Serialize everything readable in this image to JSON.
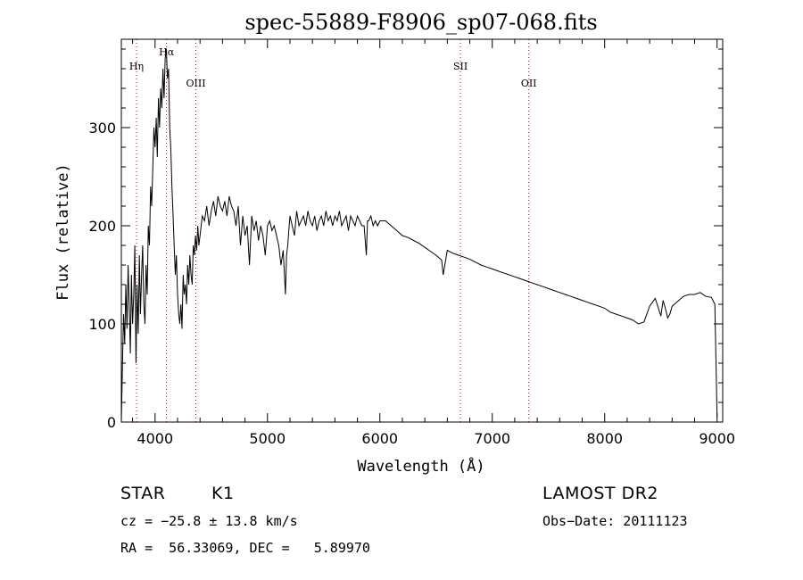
{
  "chart_data": {
    "type": "line",
    "title": "spec-55889-F8906_sp07-068.fits",
    "xlabel": "Wavelength (Å)",
    "ylabel": "Flux (relative)",
    "xlim": [
      3700,
      9050
    ],
    "ylim": [
      0,
      390
    ],
    "xticks": [
      4000,
      5000,
      6000,
      7000,
      8000,
      9000
    ],
    "yticks": [
      0,
      100,
      200,
      300
    ],
    "line_color": "#000000",
    "marker_color": "#cc0000",
    "lines": [
      {
        "name": "Hη",
        "wavelength": 3835
      },
      {
        "name": "Hα",
        "wavelength": 4102
      },
      {
        "name": "OIII",
        "wavelength": 4363
      },
      {
        "name": "SII",
        "wavelength": 6717
      },
      {
        "name": "OII",
        "wavelength": 7325
      }
    ],
    "spectrum": {
      "x": [
        3700,
        3710,
        3720,
        3730,
        3740,
        3750,
        3760,
        3770,
        3780,
        3790,
        3800,
        3810,
        3820,
        3830,
        3840,
        3850,
        3860,
        3870,
        3880,
        3890,
        3900,
        3910,
        3920,
        3930,
        3940,
        3950,
        3960,
        3970,
        3980,
        3990,
        4000,
        4010,
        4020,
        4030,
        4040,
        4050,
        4060,
        4070,
        4080,
        4090,
        4100,
        4110,
        4120,
        4130,
        4140,
        4150,
        4160,
        4170,
        4180,
        4190,
        4200,
        4210,
        4220,
        4230,
        4240,
        4250,
        4260,
        4270,
        4280,
        4290,
        4300,
        4310,
        4320,
        4330,
        4340,
        4350,
        4360,
        4370,
        4380,
        4390,
        4400,
        4420,
        4440,
        4460,
        4480,
        4500,
        4520,
        4540,
        4560,
        4580,
        4600,
        4620,
        4640,
        4660,
        4680,
        4700,
        4720,
        4740,
        4760,
        4780,
        4800,
        4820,
        4840,
        4860,
        4880,
        4900,
        4920,
        4940,
        4960,
        4980,
        5000,
        5020,
        5040,
        5060,
        5080,
        5100,
        5120,
        5140,
        5160,
        5170,
        5180,
        5190,
        5200,
        5220,
        5240,
        5260,
        5280,
        5300,
        5320,
        5340,
        5360,
        5380,
        5400,
        5420,
        5440,
        5460,
        5480,
        5500,
        5520,
        5540,
        5560,
        5580,
        5600,
        5620,
        5640,
        5660,
        5680,
        5700,
        5720,
        5740,
        5760,
        5780,
        5800,
        5820,
        5840,
        5860,
        5880,
        5890,
        5900,
        5920,
        5940,
        5960,
        5980,
        6000,
        6050,
        6100,
        6150,
        6200,
        6250,
        6300,
        6350,
        6400,
        6450,
        6500,
        6550,
        6563,
        6600,
        6650,
        6700,
        6750,
        6800,
        6850,
        6900,
        6950,
        7000,
        7050,
        7100,
        7150,
        7200,
        7250,
        7300,
        7350,
        7400,
        7450,
        7500,
        7550,
        7600,
        7650,
        7700,
        7750,
        7800,
        7850,
        7900,
        7950,
        8000,
        8050,
        8100,
        8150,
        8200,
        8250,
        8300,
        8350,
        8400,
        8450,
        8500,
        8520,
        8540,
        8560,
        8580,
        8600,
        8620,
        8640,
        8660,
        8680,
        8700,
        8750,
        8800,
        8850,
        8900,
        8950,
        8980,
        9000
      ],
      "y": [
        0,
        60,
        110,
        80,
        140,
        95,
        160,
        120,
        70,
        150,
        100,
        130,
        180,
        60,
        140,
        90,
        170,
        110,
        150,
        180,
        120,
        100,
        160,
        130,
        200,
        180,
        240,
        220,
        260,
        300,
        280,
        310,
        270,
        330,
        300,
        340,
        320,
        360,
        330,
        370,
        380,
        350,
        360,
        300,
        280,
        240,
        210,
        180,
        150,
        170,
        130,
        110,
        100,
        120,
        95,
        150,
        130,
        140,
        120,
        160,
        140,
        170,
        150,
        140,
        180,
        170,
        190,
        175,
        200,
        180,
        190,
        210,
        205,
        220,
        200,
        215,
        225,
        210,
        230,
        220,
        215,
        225,
        210,
        230,
        220,
        215,
        200,
        220,
        180,
        210,
        190,
        200,
        160,
        210,
        195,
        205,
        185,
        200,
        190,
        170,
        200,
        205,
        195,
        200,
        190,
        180,
        160,
        175,
        130,
        170,
        180,
        195,
        210,
        200,
        190,
        215,
        200,
        205,
        210,
        200,
        215,
        205,
        200,
        210,
        195,
        205,
        210,
        200,
        215,
        205,
        210,
        200,
        210,
        205,
        215,
        200,
        205,
        210,
        195,
        210,
        205,
        200,
        210,
        205,
        200,
        200,
        170,
        205,
        205,
        210,
        200,
        205,
        200,
        205,
        205,
        200,
        195,
        190,
        188,
        185,
        182,
        178,
        174,
        170,
        165,
        150,
        175,
        172,
        170,
        168,
        166,
        163,
        160,
        158,
        156,
        154,
        152,
        150,
        148,
        146,
        144,
        142,
        140,
        138,
        136,
        134,
        132,
        130,
        128,
        126,
        124,
        122,
        120,
        118,
        116,
        112,
        110,
        108,
        106,
        104,
        100,
        102,
        118,
        126,
        108,
        124,
        116,
        106,
        110,
        118,
        120,
        122,
        124,
        126,
        128,
        130,
        130,
        132,
        128,
        127,
        120,
        5
      ]
    }
  },
  "info": {
    "object_class": "STAR",
    "subclass": "K1",
    "survey": "LAMOST DR2",
    "cz": "cz = −25.8 ± 13.8 km/s",
    "obs_date": "Obs−Date: 20111123",
    "coords": "RA =  56.33069, DEC =   5.89970"
  }
}
